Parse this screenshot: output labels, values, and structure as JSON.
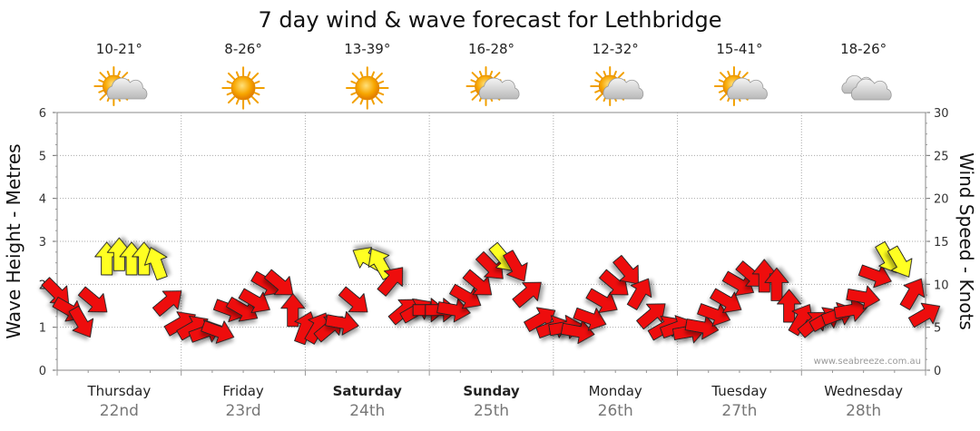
{
  "title": "7 day wind & wave forecast for Lethbridge",
  "credit": "www.seabreeze.com.au",
  "days": [
    {
      "day": "Thursday",
      "date": "22nd",
      "temp": "10-21°",
      "weather": "partly-cloudy-icon",
      "bold": false
    },
    {
      "day": "Friday",
      "date": "23rd",
      "temp": "8-26°",
      "weather": "sunny-icon",
      "bold": false
    },
    {
      "day": "Saturday",
      "date": "24th",
      "temp": "13-39°",
      "weather": "sunny-icon",
      "bold": true
    },
    {
      "day": "Sunday",
      "date": "25th",
      "temp": "16-28°",
      "weather": "partly-cloudy-icon",
      "bold": true
    },
    {
      "day": "Monday",
      "date": "26th",
      "temp": "12-32°",
      "weather": "partly-cloudy-icon",
      "bold": false
    },
    {
      "day": "Tuesday",
      "date": "27th",
      "temp": "15-41°",
      "weather": "partly-cloudy-icon",
      "bold": false
    },
    {
      "day": "Wednesday",
      "date": "28th",
      "temp": "18-26°",
      "weather": "cloudy-icon",
      "bold": false
    }
  ],
  "colors": {
    "strong_wind": "#ee1111",
    "light_wind": "#ffff22",
    "grid": "#aaaaaa",
    "date": "#777777"
  },
  "chart_data": {
    "type": "line",
    "title": "7 day wind & wave forecast for Lethbridge",
    "ylabel": "Wave Height - Metres",
    "y2label": "Wind Speed - Knots",
    "ylim": [
      0,
      6
    ],
    "y2lim": [
      0,
      30
    ],
    "yticks": [
      0,
      1,
      2,
      3,
      4,
      5,
      6
    ],
    "y2ticks": [
      0,
      5,
      10,
      15,
      20,
      25,
      30
    ],
    "grid": true,
    "x_unit": "day",
    "xlim": [
      0,
      7
    ],
    "series": [
      {
        "x": [
          0.0,
          0.1,
          0.2,
          0.3,
          0.4,
          0.5,
          0.6,
          0.7,
          0.8,
          0.9,
          1.0,
          1.1,
          1.2,
          1.3,
          1.4,
          1.5,
          1.6,
          1.7,
          1.8,
          1.9,
          2.0,
          2.1,
          2.2,
          2.3,
          2.4,
          2.5,
          2.6,
          2.7,
          2.8,
          2.9,
          3.0,
          3.1,
          3.2,
          3.3,
          3.4,
          3.5,
          3.6,
          3.7,
          3.8,
          3.9,
          4.0,
          4.1,
          4.2,
          4.3,
          4.4,
          4.5,
          4.6,
          4.7,
          4.8,
          4.9,
          5.0,
          5.1,
          5.2,
          5.3,
          5.4,
          5.5,
          5.6,
          5.7,
          5.8,
          5.9,
          6.0,
          6.1,
          6.2,
          6.3,
          6.4,
          6.5,
          6.6,
          6.7,
          6.8,
          6.9,
          7.0
        ],
        "y": [
          9.0,
          7.0,
          5.5,
          8.0,
          13.0,
          13.5,
          13.0,
          13.0,
          12.5,
          8.0,
          5.5,
          5.0,
          4.5,
          4.5,
          7.0,
          7.0,
          8.0,
          10.0,
          10.0,
          7.0,
          5.0,
          5.0,
          5.0,
          5.5,
          8.0,
          13.0,
          12.5,
          10.5,
          7.0,
          7.0,
          7.0,
          7.0,
          7.0,
          8.5,
          10.0,
          12.0,
          13.0,
          12.0,
          9.0,
          6.0,
          5.0,
          5.0,
          4.5,
          6.0,
          8.0,
          10.0,
          11.5,
          9.0,
          6.5,
          5.0,
          5.0,
          4.5,
          5.0,
          6.5,
          8.0,
          10.0,
          11.0,
          11.0,
          10.0,
          7.5,
          6.0,
          5.5,
          6.0,
          6.5,
          7.0,
          8.5,
          11.0,
          13.0,
          12.5,
          9.0,
          6.5
        ],
        "angle": [
          45,
          30,
          60,
          40,
          270,
          270,
          270,
          270,
          250,
          320,
          330,
          330,
          340,
          20,
          20,
          30,
          30,
          30,
          40,
          270,
          290,
          300,
          320,
          10,
          40,
          210,
          240,
          310,
          320,
          330,
          0,
          0,
          10,
          30,
          40,
          45,
          50,
          60,
          320,
          330,
          340,
          350,
          10,
          20,
          30,
          40,
          50,
          300,
          320,
          330,
          340,
          350,
          10,
          20,
          30,
          30,
          40,
          270,
          270,
          270,
          300,
          320,
          330,
          340,
          350,
          10,
          20,
          60,
          60,
          300,
          330
        ],
        "light": [
          false,
          false,
          false,
          false,
          true,
          true,
          true,
          true,
          true,
          false,
          false,
          false,
          false,
          false,
          false,
          false,
          false,
          false,
          false,
          false,
          false,
          false,
          false,
          false,
          false,
          true,
          true,
          false,
          false,
          false,
          false,
          false,
          false,
          false,
          false,
          false,
          true,
          false,
          false,
          false,
          false,
          false,
          false,
          false,
          false,
          false,
          false,
          false,
          false,
          false,
          false,
          false,
          false,
          false,
          false,
          false,
          false,
          false,
          false,
          false,
          false,
          false,
          false,
          false,
          false,
          false,
          false,
          true,
          true,
          false,
          false
        ]
      }
    ]
  }
}
